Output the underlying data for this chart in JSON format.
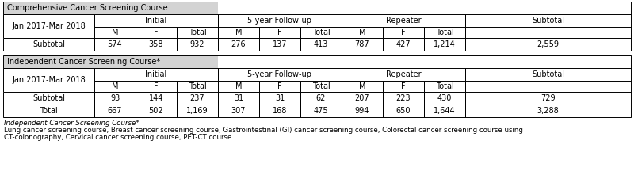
{
  "table1_header": "Comprehensive Cancer Screening Course",
  "table2_header": "Independent Cancer Screening Course*",
  "date_label": "Jan 2017-Mar 2018",
  "col_groups": [
    "Initial",
    "5-year Follow-up",
    "Repeater",
    "Subtotal"
  ],
  "sub_cols": [
    "M",
    "F",
    "Total"
  ],
  "table1_rows": [
    {
      "label": "Subtotal",
      "vals": [
        "574",
        "358",
        "932",
        "276",
        "137",
        "413",
        "787",
        "427",
        "1,214",
        "2,559"
      ]
    }
  ],
  "table2_rows": [
    {
      "label": "Subtotal",
      "vals": [
        "93",
        "144",
        "237",
        "31",
        "31",
        "62",
        "207",
        "223",
        "430",
        "729"
      ]
    },
    {
      "label": "Total",
      "vals": [
        "667",
        "502",
        "1,169",
        "307",
        "168",
        "475",
        "994",
        "650",
        "1,644",
        "3,288"
      ]
    }
  ],
  "footnote1": "Independent Cancer Screening Course*",
  "footnote2": "Lung cancer screening course, Breast cancer screening course, Gastrointestinal (GI) cancer screening course, Colorectal cancer screening course using",
  "footnote3": "CT-colonography, Cervical cancer screening course, PET-CT course",
  "header_bg": "#d3d3d3",
  "white_bg": "#ffffff",
  "font_size": 7.0,
  "footnote_font_size": 6.2
}
